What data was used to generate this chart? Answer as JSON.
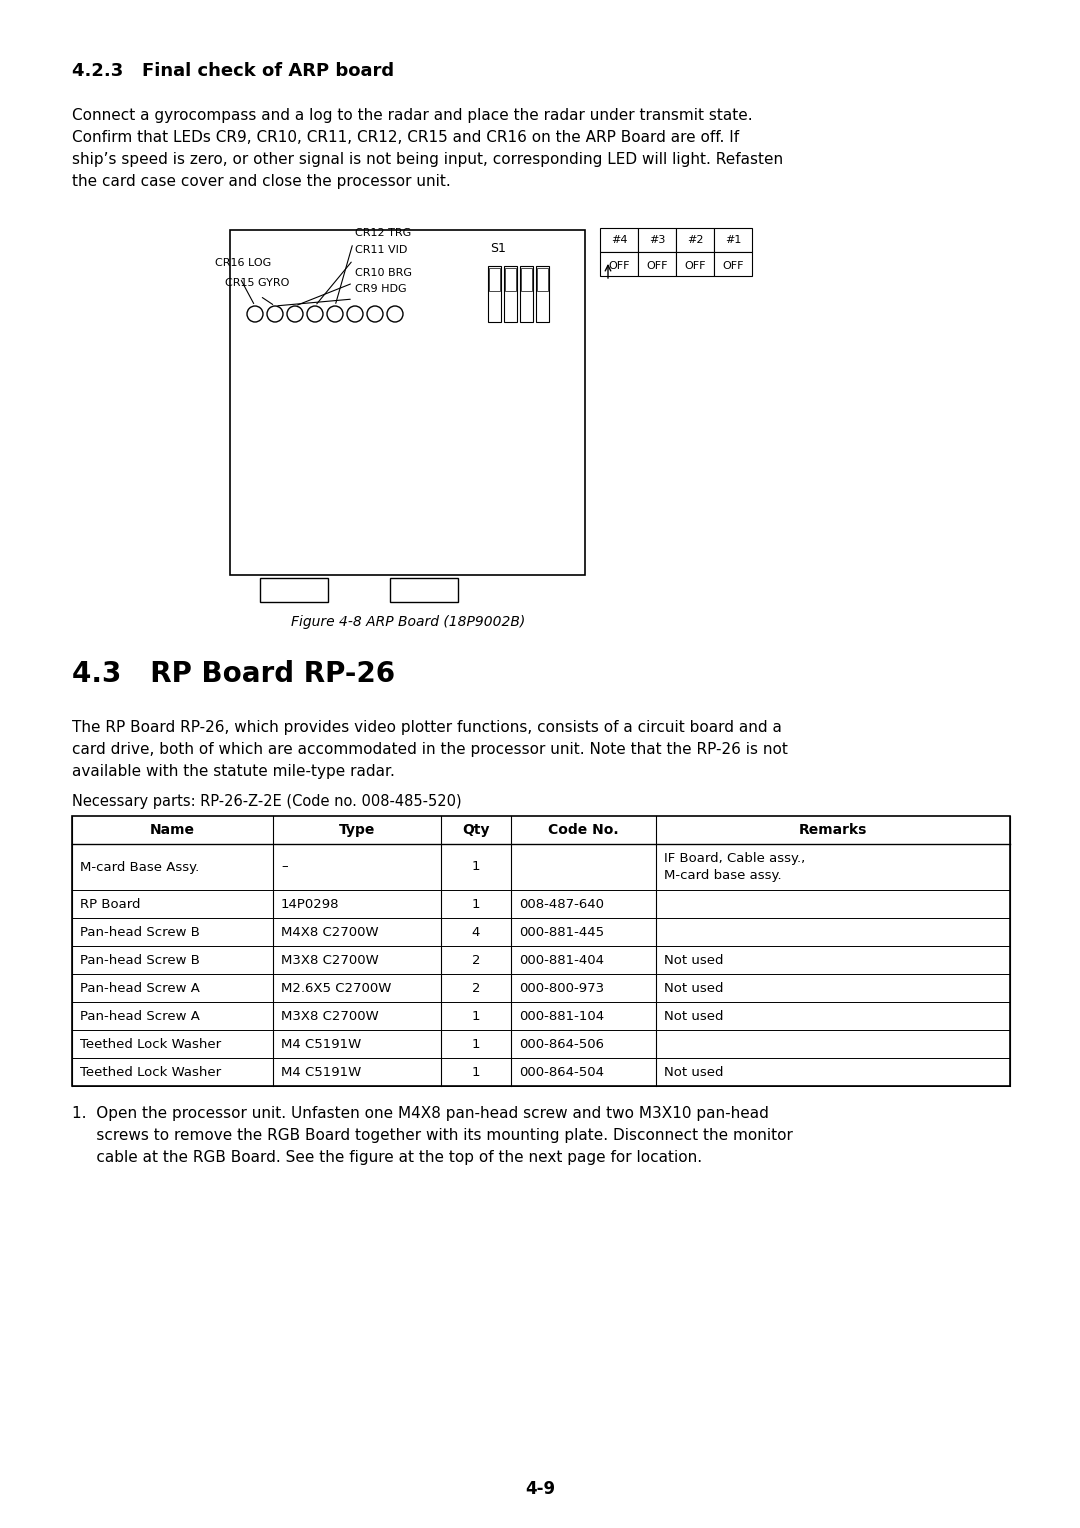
{
  "bg_color": "#ffffff",
  "section_423_title": "4.2.3   Final check of ARP board",
  "para1_lines": [
    "Connect a gyrocompass and a log to the radar and place the radar under transmit state.",
    "Confirm that LEDs CR9, CR10, CR11, CR12, CR15 and CR16 on the ARP Board are off. If",
    "ship’s speed is zero, or other signal is not being input, corresponding LED will light. Refasten",
    "the card case cover and close the processor unit."
  ],
  "figure_caption": "Figure 4-8 ARP Board (18P9002B)",
  "section_43_title": "4.3   RP Board RP-26",
  "para2_lines": [
    "The RP Board RP-26, which provides video plotter functions, consists of a circuit board and a",
    "card drive, both of which are accommodated in the processor unit. Note that the RP-26 is not",
    "available with the statute mile-type radar."
  ],
  "necessary_parts_text": "Necessary parts: RP-26-Z-2E (Code no. 008-485-520)",
  "col_headers": [
    "Name",
    "Type",
    "Qty",
    "Code No.",
    "Remarks"
  ],
  "table_rows": [
    [
      "M-card Base Assy.",
      "–",
      "1",
      "",
      "IF Board, Cable assy.,\nM-card base assy."
    ],
    [
      "RP Board",
      "14P0298",
      "1",
      "008-487-640",
      ""
    ],
    [
      "Pan-head Screw B",
      "M4X8 C2700W",
      "4",
      "000-881-445",
      ""
    ],
    [
      "Pan-head Screw B",
      "M3X8 C2700W",
      "2",
      "000-881-404",
      "Not used"
    ],
    [
      "Pan-head Screw A",
      "M2.6X5 C2700W",
      "2",
      "000-800-973",
      "Not used"
    ],
    [
      "Pan-head Screw A",
      "M3X8 C2700W",
      "1",
      "000-881-104",
      "Not used"
    ],
    [
      "Teethed Lock Washer",
      "M4 C5191W",
      "1",
      "000-864-506",
      ""
    ],
    [
      "Teethed Lock Washer",
      "M4 C5191W",
      "1",
      "000-864-504",
      "Not used"
    ]
  ],
  "step1_text": [
    "1.  Open the processor unit. Unfasten one M4X8 pan-head screw and two M3X10 pan-head",
    "     screws to remove the RGB Board together with its mounting plate. Disconnect the monitor",
    "     cable at the RGB Board. See the figure at the top of the next page for location."
  ],
  "page_number": "4-9"
}
